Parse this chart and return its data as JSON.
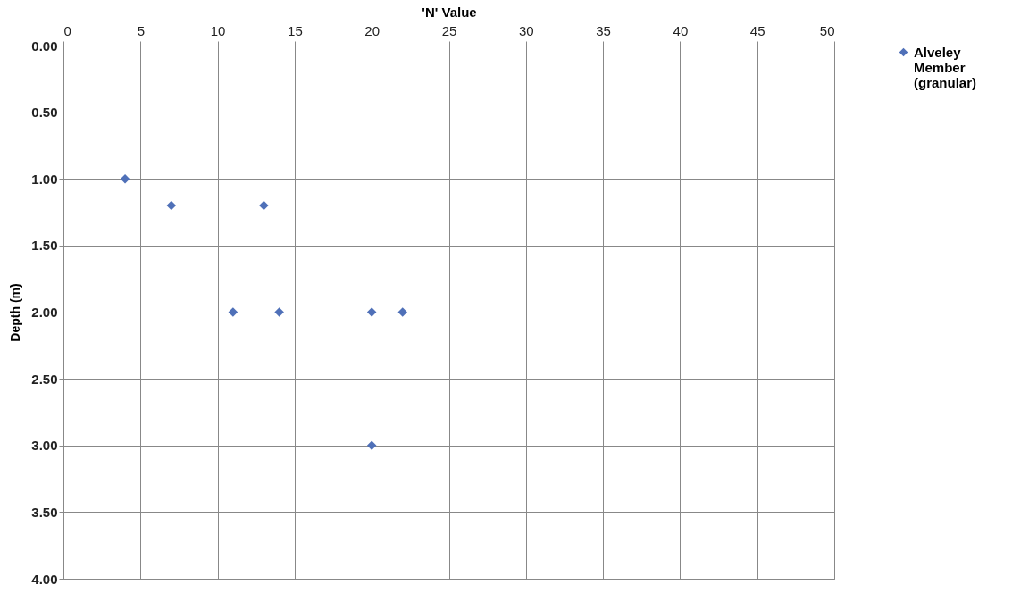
{
  "chart_data": {
    "type": "scatter",
    "xlabel": "'N' Value",
    "ylabel": "Depth (m)",
    "xlim": [
      0,
      50
    ],
    "xticks": [
      0,
      5,
      10,
      15,
      20,
      25,
      30,
      35,
      40,
      45,
      50
    ],
    "ylim": [
      4,
      0
    ],
    "yticks": [
      {
        "value": 0,
        "label": "0.00"
      },
      {
        "value": 0.5,
        "label": "0.50"
      },
      {
        "value": 1,
        "label": "1.00"
      },
      {
        "value": 1.5,
        "label": "1.50"
      },
      {
        "value": 2,
        "label": "2.00"
      },
      {
        "value": 2.5,
        "label": "2.50"
      },
      {
        "value": 3,
        "label": "3.00"
      },
      {
        "value": 3.5,
        "label": "3.50"
      },
      {
        "value": 4,
        "label": "4.00"
      }
    ],
    "grid": true,
    "legend": "right",
    "marker": "diamond",
    "series": [
      {
        "name": "Alveley Member (granular)",
        "color": "#4f70b8",
        "x": [
          4,
          7,
          13,
          11,
          14,
          20,
          22,
          20
        ],
        "values": [
          1.0,
          1.2,
          1.2,
          2.0,
          2.0,
          2.0,
          2.0,
          3.0
        ]
      }
    ]
  }
}
